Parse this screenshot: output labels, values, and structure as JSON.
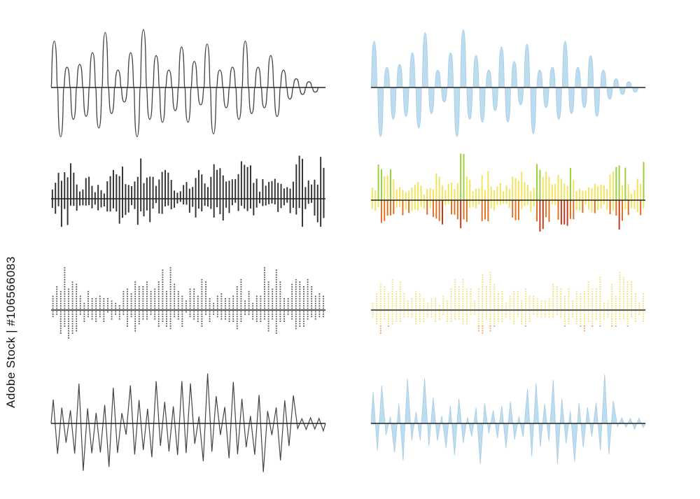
{
  "stock_id_text": "Adobe Stock | #106566083",
  "colors": {
    "line_gray": "#444444",
    "fill_blue": "#bcdcf0",
    "fill_blue_stroke": "#a9cbe2",
    "bar_dark": "#333333",
    "bar_green": "#9ad13a",
    "bar_yellow": "#f2e35a",
    "bar_orange": "#e07020",
    "bar_red": "#c8381c",
    "dot_gray": "#555555",
    "dot_yellow": "#f0df70",
    "dot_orange": "#f0a050"
  },
  "waveforms": [
    {
      "id": "smooth-line-wave",
      "style": "smooth",
      "color_key": "line_gray",
      "filled": false
    },
    {
      "id": "smooth-filled-wave",
      "style": "smooth",
      "color_key": "fill_blue",
      "filled": true
    },
    {
      "id": "bar-wave-dark",
      "style": "bars",
      "color_key": "bar_dark"
    },
    {
      "id": "bar-wave-color",
      "style": "bars",
      "color_key": "gradient"
    },
    {
      "id": "dotted-wave-gray",
      "style": "dots",
      "color_key": "dot_gray"
    },
    {
      "id": "dotted-wave-color",
      "style": "dots",
      "color_key": "gradient"
    },
    {
      "id": "spike-line-wave",
      "style": "spike",
      "color_key": "line_gray",
      "filled": false
    },
    {
      "id": "spike-filled-wave",
      "style": "spike",
      "color_key": "fill_blue",
      "filled": true
    }
  ]
}
